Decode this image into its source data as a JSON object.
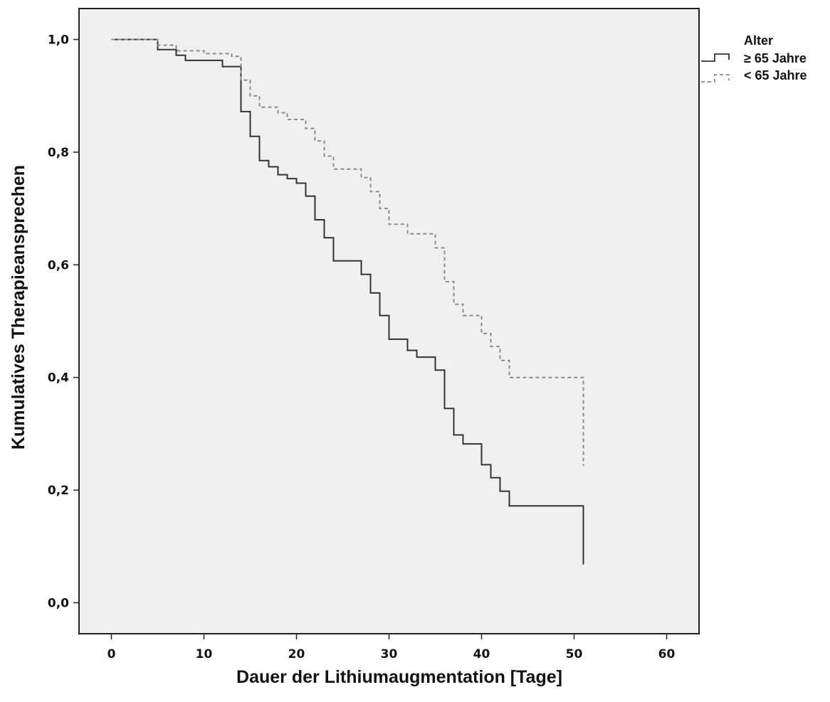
{
  "chart_data": {
    "type": "line",
    "subtype": "kaplan-meier-step",
    "xlabel": "Dauer der Lithiumaugmentation [Tage]",
    "ylabel": "Kumulatives Therapieansprechen",
    "xlim": [
      -3.5,
      63.5
    ],
    "ylim": [
      -0.055,
      1.055
    ],
    "x_ticks": [
      0,
      10,
      20,
      30,
      40,
      50,
      60
    ],
    "x_tick_labels": [
      "0",
      "10",
      "20",
      "30",
      "40",
      "50",
      "60"
    ],
    "y_ticks": [
      0.0,
      0.2,
      0.4,
      0.6,
      0.8,
      1.0
    ],
    "y_tick_labels": [
      "0,0",
      "0,2",
      "0,4",
      "0,6",
      "0,8",
      "1,0"
    ],
    "grid": false,
    "legend": {
      "title": "Alter",
      "placement": "right-top"
    },
    "series": [
      {
        "name": "≥ 65 Jahre",
        "color": "#333333",
        "dash": "solid",
        "x": [
          0,
          5,
          7,
          8,
          12,
          14,
          14,
          15,
          16,
          17,
          18,
          19,
          20,
          21,
          22,
          23,
          24,
          27,
          28,
          29,
          30,
          32,
          33,
          35,
          36,
          37,
          38,
          40,
          41,
          42,
          43,
          51,
          51
        ],
        "y": [
          1.0,
          0.982,
          0.972,
          0.963,
          0.952,
          0.935,
          0.872,
          0.828,
          0.785,
          0.774,
          0.76,
          0.753,
          0.745,
          0.722,
          0.68,
          0.648,
          0.607,
          0.583,
          0.55,
          0.51,
          0.468,
          0.448,
          0.436,
          0.413,
          0.345,
          0.298,
          0.282,
          0.245,
          0.222,
          0.198,
          0.172,
          0.142,
          0.068
        ]
      },
      {
        "name": "< 65 Jahre",
        "color": "#8a8a8a",
        "dash": "dashed",
        "x": [
          0,
          5,
          7,
          10,
          13,
          14,
          14,
          15,
          16,
          18,
          19,
          21,
          22,
          23,
          24,
          27,
          28,
          29,
          30,
          32,
          35,
          36,
          37,
          38,
          40,
          41,
          42,
          43,
          51
        ],
        "y": [
          1.0,
          0.99,
          0.98,
          0.975,
          0.97,
          0.948,
          0.928,
          0.9,
          0.88,
          0.87,
          0.858,
          0.842,
          0.82,
          0.793,
          0.77,
          0.755,
          0.73,
          0.7,
          0.672,
          0.655,
          0.63,
          0.57,
          0.53,
          0.51,
          0.478,
          0.455,
          0.43,
          0.4,
          0.36
        ],
        "end_drop": 0.243
      }
    ]
  }
}
